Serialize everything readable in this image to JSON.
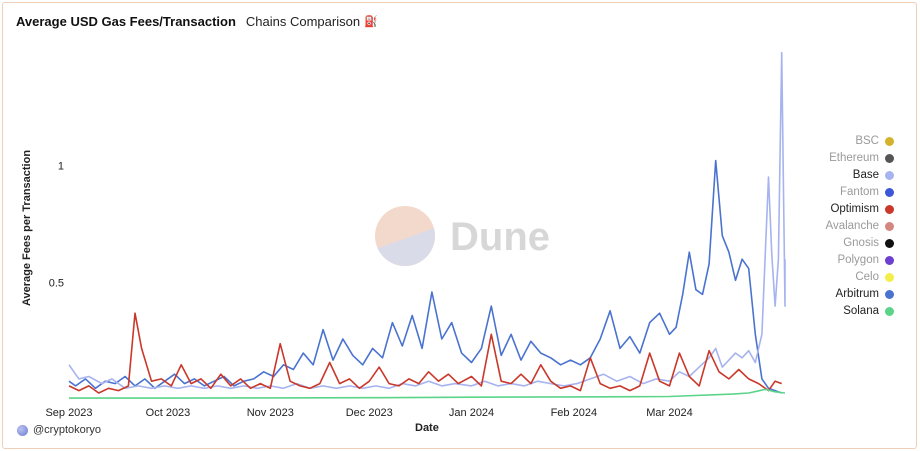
{
  "header": {
    "title": "Average USD Gas Fees/Transaction",
    "subtitle": "Chains Comparison",
    "emoji": "⛽"
  },
  "credit": {
    "handle": "@cryptokoryo"
  },
  "watermark": {
    "text": "Dune"
  },
  "chart_data": {
    "type": "line",
    "xlabel": "Date",
    "ylabel": "Average Fees per Transaction",
    "xlim": [
      "2023-09-01",
      "2024-04-05"
    ],
    "ylim": [
      0,
      1.5
    ],
    "x_ticks": [
      "Sep 2023",
      "Oct 2023",
      "Nov 2023",
      "Dec 2023",
      "Jan 2024",
      "Feb 2024",
      "Mar 2024"
    ],
    "x_tick_dates": [
      "2023-09-01",
      "2023-10-01",
      "2023-11-01",
      "2023-12-01",
      "2024-01-01",
      "2024-02-01",
      "2024-03-01"
    ],
    "y_ticks": [
      1,
      0.5
    ],
    "grid": false,
    "legend_position": "right",
    "legend": [
      {
        "name": "BSC",
        "color": "#d4b22c",
        "active": false
      },
      {
        "name": "Ethereum",
        "color": "#555555",
        "active": false
      },
      {
        "name": "Base",
        "color": "#a6b3ef",
        "active": true
      },
      {
        "name": "Fantom",
        "color": "#3d57d8",
        "active": false
      },
      {
        "name": "Optimism",
        "color": "#c9382a",
        "active": true
      },
      {
        "name": "Avalanche",
        "color": "#d4877f",
        "active": false
      },
      {
        "name": "Gnosis",
        "color": "#111111",
        "active": false
      },
      {
        "name": "Polygon",
        "color": "#6c3fd0",
        "active": false
      },
      {
        "name": "Celo",
        "color": "#f3ee4a",
        "active": false
      },
      {
        "name": "Arbitrum",
        "color": "#4a73d0",
        "active": true
      },
      {
        "name": "Solana",
        "color": "#5bd48a",
        "active": true
      }
    ],
    "series": [
      {
        "name": "Arbitrum",
        "color": "#4a73d0",
        "points": [
          [
            "2023-09-01",
            0.08
          ],
          [
            "2023-09-03",
            0.06
          ],
          [
            "2023-09-06",
            0.09
          ],
          [
            "2023-09-09",
            0.05
          ],
          [
            "2023-09-12",
            0.08
          ],
          [
            "2023-09-15",
            0.07
          ],
          [
            "2023-09-18",
            0.1
          ],
          [
            "2023-09-21",
            0.06
          ],
          [
            "2023-09-24",
            0.09
          ],
          [
            "2023-09-27",
            0.05
          ],
          [
            "2023-09-30",
            0.08
          ],
          [
            "2023-10-03",
            0.11
          ],
          [
            "2023-10-06",
            0.07
          ],
          [
            "2023-10-09",
            0.09
          ],
          [
            "2023-10-12",
            0.06
          ],
          [
            "2023-10-15",
            0.08
          ],
          [
            "2023-10-18",
            0.1
          ],
          [
            "2023-10-21",
            0.06
          ],
          [
            "2023-10-24",
            0.08
          ],
          [
            "2023-10-27",
            0.09
          ],
          [
            "2023-10-30",
            0.12
          ],
          [
            "2023-11-02",
            0.1
          ],
          [
            "2023-11-05",
            0.15
          ],
          [
            "2023-11-08",
            0.13
          ],
          [
            "2023-11-11",
            0.2
          ],
          [
            "2023-11-14",
            0.15
          ],
          [
            "2023-11-17",
            0.3
          ],
          [
            "2023-11-20",
            0.17
          ],
          [
            "2023-11-23",
            0.26
          ],
          [
            "2023-11-26",
            0.19
          ],
          [
            "2023-11-29",
            0.15
          ],
          [
            "2023-12-02",
            0.22
          ],
          [
            "2023-12-05",
            0.18
          ],
          [
            "2023-12-08",
            0.33
          ],
          [
            "2023-12-11",
            0.23
          ],
          [
            "2023-12-14",
            0.36
          ],
          [
            "2023-12-17",
            0.22
          ],
          [
            "2023-12-20",
            0.46
          ],
          [
            "2023-12-23",
            0.26
          ],
          [
            "2023-12-26",
            0.33
          ],
          [
            "2023-12-29",
            0.2
          ],
          [
            "2024-01-01",
            0.16
          ],
          [
            "2024-01-04",
            0.22
          ],
          [
            "2024-01-07",
            0.4
          ],
          [
            "2024-01-10",
            0.19
          ],
          [
            "2024-01-13",
            0.28
          ],
          [
            "2024-01-16",
            0.17
          ],
          [
            "2024-01-19",
            0.25
          ],
          [
            "2024-01-22",
            0.2
          ],
          [
            "2024-01-25",
            0.18
          ],
          [
            "2024-01-28",
            0.15
          ],
          [
            "2024-01-31",
            0.17
          ],
          [
            "2024-02-03",
            0.15
          ],
          [
            "2024-02-06",
            0.18
          ],
          [
            "2024-02-09",
            0.26
          ],
          [
            "2024-02-12",
            0.38
          ],
          [
            "2024-02-15",
            0.22
          ],
          [
            "2024-02-18",
            0.27
          ],
          [
            "2024-02-21",
            0.2
          ],
          [
            "2024-02-24",
            0.33
          ],
          [
            "2024-02-27",
            0.37
          ],
          [
            "2024-03-01",
            0.28
          ],
          [
            "2024-03-03",
            0.31
          ],
          [
            "2024-03-05",
            0.45
          ],
          [
            "2024-03-07",
            0.63
          ],
          [
            "2024-03-09",
            0.47
          ],
          [
            "2024-03-11",
            0.45
          ],
          [
            "2024-03-13",
            0.58
          ],
          [
            "2024-03-15",
            1.02
          ],
          [
            "2024-03-17",
            0.7
          ],
          [
            "2024-03-19",
            0.63
          ],
          [
            "2024-03-21",
            0.51
          ],
          [
            "2024-03-23",
            0.6
          ],
          [
            "2024-03-25",
            0.56
          ],
          [
            "2024-03-27",
            0.28
          ],
          [
            "2024-03-29",
            0.09
          ],
          [
            "2024-03-31",
            0.05
          ],
          [
            "2024-04-02",
            0.04
          ],
          [
            "2024-04-04",
            0.03
          ]
        ]
      },
      {
        "name": "Base",
        "color": "#a6b3ef",
        "points": [
          [
            "2023-09-01",
            0.15
          ],
          [
            "2023-09-04",
            0.09
          ],
          [
            "2023-09-07",
            0.1
          ],
          [
            "2023-09-11",
            0.07
          ],
          [
            "2023-09-14",
            0.09
          ],
          [
            "2023-09-18",
            0.05
          ],
          [
            "2023-09-22",
            0.06
          ],
          [
            "2023-09-26",
            0.05
          ],
          [
            "2023-09-30",
            0.06
          ],
          [
            "2023-10-04",
            0.05
          ],
          [
            "2023-10-08",
            0.06
          ],
          [
            "2023-10-12",
            0.05
          ],
          [
            "2023-10-16",
            0.06
          ],
          [
            "2023-10-20",
            0.05
          ],
          [
            "2023-10-24",
            0.06
          ],
          [
            "2023-10-28",
            0.05
          ],
          [
            "2023-11-01",
            0.06
          ],
          [
            "2023-11-05",
            0.05
          ],
          [
            "2023-11-09",
            0.07
          ],
          [
            "2023-11-13",
            0.05
          ],
          [
            "2023-11-17",
            0.06
          ],
          [
            "2023-11-21",
            0.05
          ],
          [
            "2023-11-25",
            0.06
          ],
          [
            "2023-11-29",
            0.05
          ],
          [
            "2023-12-03",
            0.06
          ],
          [
            "2023-12-07",
            0.05
          ],
          [
            "2023-12-11",
            0.07
          ],
          [
            "2023-12-15",
            0.06
          ],
          [
            "2023-12-19",
            0.08
          ],
          [
            "2023-12-23",
            0.06
          ],
          [
            "2023-12-27",
            0.07
          ],
          [
            "2024-01-01",
            0.06
          ],
          [
            "2024-01-05",
            0.08
          ],
          [
            "2024-01-09",
            0.06
          ],
          [
            "2024-01-13",
            0.07
          ],
          [
            "2024-01-17",
            0.06
          ],
          [
            "2024-01-21",
            0.08
          ],
          [
            "2024-01-25",
            0.07
          ],
          [
            "2024-01-29",
            0.06
          ],
          [
            "2024-02-02",
            0.07
          ],
          [
            "2024-02-06",
            0.09
          ],
          [
            "2024-02-10",
            0.11
          ],
          [
            "2024-02-14",
            0.08
          ],
          [
            "2024-02-18",
            0.1
          ],
          [
            "2024-02-22",
            0.07
          ],
          [
            "2024-02-26",
            0.09
          ],
          [
            "2024-03-01",
            0.08
          ],
          [
            "2024-03-04",
            0.12
          ],
          [
            "2024-03-07",
            0.1
          ],
          [
            "2024-03-10",
            0.14
          ],
          [
            "2024-03-13",
            0.18
          ],
          [
            "2024-03-15",
            0.22
          ],
          [
            "2024-03-17",
            0.14
          ],
          [
            "2024-03-19",
            0.17
          ],
          [
            "2024-03-21",
            0.2
          ],
          [
            "2024-03-23",
            0.18
          ],
          [
            "2024-03-25",
            0.21
          ],
          [
            "2024-03-27",
            0.16
          ],
          [
            "2024-03-29",
            0.28
          ],
          [
            "2024-03-31",
            0.95
          ],
          [
            "2024-04-01",
            0.62
          ],
          [
            "2024-04-02",
            0.4
          ],
          [
            "2024-04-03",
            0.6
          ],
          [
            "2024-04-04",
            1.48
          ],
          [
            "2024-04-05",
            0.4
          ],
          [
            "2024-04-05",
            0.6
          ]
        ]
      },
      {
        "name": "Optimism",
        "color": "#c9382a",
        "points": [
          [
            "2023-09-01",
            0.06
          ],
          [
            "2023-09-04",
            0.04
          ],
          [
            "2023-09-07",
            0.06
          ],
          [
            "2023-09-10",
            0.03
          ],
          [
            "2023-09-13",
            0.05
          ],
          [
            "2023-09-16",
            0.04
          ],
          [
            "2023-09-19",
            0.06
          ],
          [
            "2023-09-21",
            0.37
          ],
          [
            "2023-09-23",
            0.22
          ],
          [
            "2023-09-26",
            0.08
          ],
          [
            "2023-09-29",
            0.09
          ],
          [
            "2023-10-02",
            0.06
          ],
          [
            "2023-10-05",
            0.15
          ],
          [
            "2023-10-08",
            0.07
          ],
          [
            "2023-10-11",
            0.09
          ],
          [
            "2023-10-14",
            0.05
          ],
          [
            "2023-10-17",
            0.11
          ],
          [
            "2023-10-20",
            0.06
          ],
          [
            "2023-10-23",
            0.09
          ],
          [
            "2023-10-26",
            0.05
          ],
          [
            "2023-10-29",
            0.07
          ],
          [
            "2023-11-01",
            0.05
          ],
          [
            "2023-11-04",
            0.24
          ],
          [
            "2023-11-07",
            0.08
          ],
          [
            "2023-11-10",
            0.06
          ],
          [
            "2023-11-13",
            0.05
          ],
          [
            "2023-11-16",
            0.07
          ],
          [
            "2023-11-19",
            0.16
          ],
          [
            "2023-11-22",
            0.07
          ],
          [
            "2023-11-25",
            0.09
          ],
          [
            "2023-11-28",
            0.05
          ],
          [
            "2023-12-01",
            0.08
          ],
          [
            "2023-12-04",
            0.14
          ],
          [
            "2023-12-07",
            0.07
          ],
          [
            "2023-12-10",
            0.06
          ],
          [
            "2023-12-13",
            0.09
          ],
          [
            "2023-12-16",
            0.07
          ],
          [
            "2023-12-19",
            0.12
          ],
          [
            "2023-12-22",
            0.08
          ],
          [
            "2023-12-25",
            0.11
          ],
          [
            "2023-12-28",
            0.07
          ],
          [
            "2024-01-01",
            0.1
          ],
          [
            "2024-01-04",
            0.06
          ],
          [
            "2024-01-07",
            0.28
          ],
          [
            "2024-01-10",
            0.08
          ],
          [
            "2024-01-13",
            0.07
          ],
          [
            "2024-01-16",
            0.11
          ],
          [
            "2024-01-19",
            0.07
          ],
          [
            "2024-01-22",
            0.15
          ],
          [
            "2024-01-25",
            0.08
          ],
          [
            "2024-01-28",
            0.05
          ],
          [
            "2024-01-31",
            0.06
          ],
          [
            "2024-02-03",
            0.04
          ],
          [
            "2024-02-06",
            0.18
          ],
          [
            "2024-02-09",
            0.07
          ],
          [
            "2024-02-12",
            0.05
          ],
          [
            "2024-02-15",
            0.06
          ],
          [
            "2024-02-18",
            0.04
          ],
          [
            "2024-02-21",
            0.06
          ],
          [
            "2024-02-24",
            0.2
          ],
          [
            "2024-02-27",
            0.08
          ],
          [
            "2024-03-01",
            0.06
          ],
          [
            "2024-03-04",
            0.2
          ],
          [
            "2024-03-07",
            0.1
          ],
          [
            "2024-03-10",
            0.06
          ],
          [
            "2024-03-13",
            0.21
          ],
          [
            "2024-03-16",
            0.12
          ],
          [
            "2024-03-19",
            0.09
          ],
          [
            "2024-03-22",
            0.13
          ],
          [
            "2024-03-25",
            0.09
          ],
          [
            "2024-03-28",
            0.07
          ],
          [
            "2024-03-31",
            0.04
          ],
          [
            "2024-04-02",
            0.08
          ],
          [
            "2024-04-04",
            0.07
          ]
        ]
      },
      {
        "name": "Solana",
        "color": "#5bd48a",
        "points": [
          [
            "2023-09-01",
            0.008
          ],
          [
            "2023-10-01",
            0.008
          ],
          [
            "2023-11-01",
            0.009
          ],
          [
            "2023-12-01",
            0.01
          ],
          [
            "2024-01-01",
            0.012
          ],
          [
            "2024-02-01",
            0.013
          ],
          [
            "2024-03-01",
            0.015
          ],
          [
            "2024-03-20",
            0.025
          ],
          [
            "2024-03-25",
            0.03
          ],
          [
            "2024-03-30",
            0.045
          ],
          [
            "2024-04-02",
            0.035
          ],
          [
            "2024-04-05",
            0.03
          ]
        ]
      }
    ]
  }
}
